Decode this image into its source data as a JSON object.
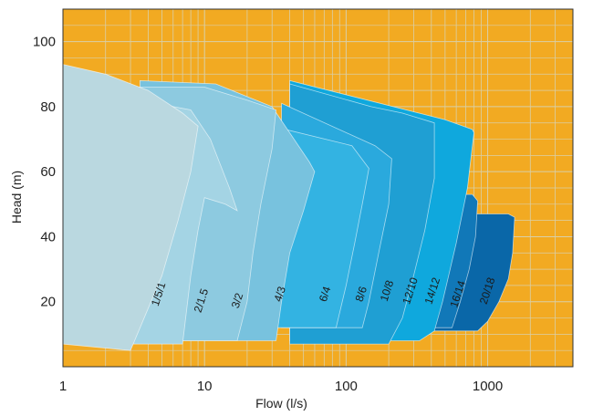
{
  "chart_data": {
    "type": "area",
    "title": "",
    "xlabel": "Flow (l/s)",
    "ylabel": "Head (m)",
    "x_scale": "log",
    "xlim": [
      1,
      4000
    ],
    "ylim": [
      0,
      110
    ],
    "x_ticks": [
      1,
      10,
      100,
      1000
    ],
    "x_tick_labels": [
      "1",
      "10",
      "100",
      "1000"
    ],
    "y_ticks": [
      20,
      40,
      60,
      80,
      100
    ],
    "y_tick_labels": [
      "20",
      "40",
      "60",
      "80",
      "100"
    ],
    "grid": true,
    "background_color": "#F2AA22",
    "grid_color": "#D9CFA8",
    "regions": [
      {
        "name": "20/18",
        "color": "#0A67A8",
        "outline": [
          [
            300,
            47
          ],
          [
            1400,
            47
          ],
          [
            1550,
            46
          ],
          [
            1500,
            35
          ],
          [
            1400,
            27
          ],
          [
            1200,
            20
          ],
          [
            1000,
            14
          ],
          [
            850,
            11
          ],
          [
            400,
            11
          ],
          [
            300,
            20
          ]
        ],
        "label_pos": [
          1050,
          23
        ]
      },
      {
        "name": "16/14",
        "color": "#1178B8",
        "outline": [
          [
            200,
            53
          ],
          [
            780,
            53
          ],
          [
            850,
            51
          ],
          [
            820,
            40
          ],
          [
            740,
            30
          ],
          [
            640,
            20
          ],
          [
            560,
            12
          ],
          [
            200,
            12
          ]
        ],
        "label_pos": [
          650,
          22
        ]
      },
      {
        "name": "14/12",
        "color": "#0E8CCC",
        "outline": [
          [
            120,
            63
          ],
          [
            500,
            63
          ],
          [
            570,
            60
          ],
          [
            520,
            48
          ],
          [
            460,
            35
          ],
          [
            400,
            22
          ],
          [
            350,
            12
          ],
          [
            120,
            12
          ]
        ],
        "label_pos": [
          430,
          23
        ]
      },
      {
        "name": "12/10",
        "color": "#0FA8DD",
        "outline": [
          [
            40,
            88
          ],
          [
            500,
            76
          ],
          [
            780,
            73
          ],
          [
            800,
            72
          ],
          [
            720,
            55
          ],
          [
            600,
            38
          ],
          [
            480,
            20
          ],
          [
            420,
            11
          ],
          [
            330,
            8
          ],
          [
            40,
            8
          ]
        ],
        "label_pos": [
          300,
          23
        ]
      },
      {
        "name": "10/8",
        "color": "#1F9FD3",
        "outline": [
          [
            40,
            87
          ],
          [
            150,
            80
          ],
          [
            250,
            78
          ],
          [
            420,
            75
          ],
          [
            420,
            58
          ],
          [
            360,
            42
          ],
          [
            300,
            28
          ],
          [
            250,
            15
          ],
          [
            200,
            7
          ],
          [
            40,
            7
          ]
        ],
        "label_pos": [
          205,
          23
        ]
      },
      {
        "name": "8/6",
        "color": "#2AA9DD",
        "outline": [
          [
            35,
            81
          ],
          [
            160,
            68
          ],
          [
            210,
            64
          ],
          [
            200,
            50
          ],
          [
            170,
            35
          ],
          [
            145,
            20
          ],
          [
            130,
            12
          ],
          [
            35,
            12
          ]
        ],
        "label_pos": [
          135,
          22
        ]
      },
      {
        "name": "6/4",
        "color": "#33B3E2",
        "outline": [
          [
            30,
            74
          ],
          [
            110,
            68
          ],
          [
            145,
            61
          ],
          [
            130,
            50
          ],
          [
            115,
            38
          ],
          [
            100,
            25
          ],
          [
            85,
            12
          ],
          [
            30,
            12
          ]
        ],
        "label_pos": [
          75,
          22
        ]
      },
      {
        "name": "4/3",
        "color": "#78C2DE",
        "outline": [
          [
            3.5,
            88
          ],
          [
            12,
            87
          ],
          [
            30,
            80
          ],
          [
            55,
            63
          ],
          [
            60,
            60
          ],
          [
            50,
            48
          ],
          [
            40,
            35
          ],
          [
            35,
            20
          ],
          [
            32,
            8
          ],
          [
            3.5,
            8
          ]
        ],
        "label_pos": [
          36,
          22
        ]
      },
      {
        "name": "3/2",
        "color": "#8DCAE0",
        "outline": [
          [
            3,
            86
          ],
          [
            10,
            86
          ],
          [
            20,
            82
          ],
          [
            32,
            79
          ],
          [
            30,
            67
          ],
          [
            25,
            50
          ],
          [
            22,
            35
          ],
          [
            20,
            20
          ],
          [
            17,
            8
          ],
          [
            3,
            8
          ]
        ],
        "label_pos": [
          18,
          20
        ]
      },
      {
        "name": "2/1.5",
        "color": "#A4D4E4",
        "outline": [
          [
            2,
            84
          ],
          [
            8,
            79
          ],
          [
            11,
            70
          ],
          [
            15,
            55
          ],
          [
            17,
            48
          ],
          [
            14,
            50
          ],
          [
            10,
            52
          ],
          [
            9,
            42
          ],
          [
            8,
            28
          ],
          [
            7,
            7
          ],
          [
            2,
            7
          ]
        ],
        "label_pos": [
          10,
          20
        ]
      },
      {
        "name": "1/5/1",
        "color": "#BAD8E0",
        "outline": [
          [
            1,
            93
          ],
          [
            2,
            90
          ],
          [
            4,
            85
          ],
          [
            7,
            78
          ],
          [
            9,
            74
          ],
          [
            8,
            60
          ],
          [
            6.5,
            45
          ],
          [
            5,
            28
          ],
          [
            3,
            5
          ],
          [
            1,
            7
          ]
        ],
        "label_pos": [
          5,
          22
        ]
      }
    ]
  }
}
